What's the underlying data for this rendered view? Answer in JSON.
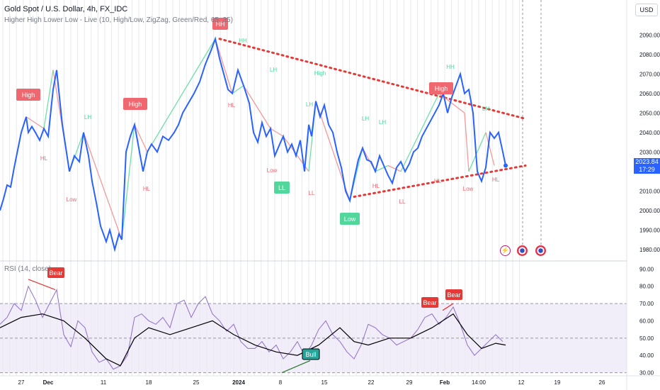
{
  "legend": {
    "title": "Gold Spot / U.S. Dollar, 4h, FX_IDC",
    "indicator": "Higher High Lower Low - Live (10, High/Low, ZigZag, Green/Red, 65, 35)",
    "rsi": "RSI (14, close)"
  },
  "currency": "USD",
  "last_price": {
    "value": "2023.84",
    "countdown": "17:29"
  },
  "colors": {
    "price_line": "#2962ff",
    "zig_up": "#6fe0a6",
    "zig_down": "#f29a9a",
    "trend": "#e53935",
    "rsi_line": "#7e57c2",
    "rsi_ma": "#000000",
    "label_red": "#f0686f",
    "label_green": "#52d69b"
  },
  "event_icons": [
    "lightning-icon",
    "us-flag-icon",
    "us-flag-icon"
  ],
  "chart_data": [
    {
      "type": "line",
      "title": "Gold Spot / U.S. Dollar, 4h",
      "x_ticks": [
        "27",
        "Dec",
        "11",
        "18",
        "25",
        "2024",
        "8",
        "15",
        "22",
        "29",
        "Feb",
        "14:00",
        "12",
        "19",
        "26"
      ],
      "y_ticks": [
        1980,
        1990,
        2000,
        2010,
        2020,
        2030,
        2040,
        2050,
        2060,
        2070,
        2080,
        2090
      ],
      "ylim": [
        1977,
        2097
      ],
      "x": [
        0,
        5,
        10,
        15,
        20,
        30,
        37,
        40,
        45,
        50,
        56,
        62,
        68,
        75,
        80,
        88,
        93,
        98,
        105,
        112,
        118,
        125,
        130,
        136,
        142,
        150,
        155,
        162,
        168,
        172,
        178,
        184,
        190,
        196,
        202,
        208,
        214,
        222,
        230,
        238,
        246,
        252,
        258,
        266,
        274,
        282,
        290,
        298,
        304,
        310,
        316,
        322,
        328,
        336,
        344,
        352,
        358,
        364,
        370,
        376,
        382,
        388,
        395,
        400,
        406,
        412,
        418,
        424,
        430,
        436,
        440,
        446,
        452,
        458,
        464,
        470,
        476,
        482,
        488,
        494,
        500,
        506,
        512,
        518,
        524,
        530,
        536,
        542,
        548,
        554,
        560,
        566,
        572,
        578,
        584,
        590,
        596,
        602,
        608,
        614,
        620,
        626,
        632,
        638,
        644,
        650,
        656,
        662,
        668,
        674,
        680,
        686,
        692,
        698,
        704,
        710,
        714
      ],
      "values": [
        2000,
        2006,
        2013,
        2012,
        2022,
        2040,
        2048,
        2040,
        2043,
        2040,
        2036,
        2042,
        2038,
        2062,
        2072,
        2044,
        2032,
        2020,
        2028,
        2025,
        2040,
        2028,
        2015,
        2004,
        1992,
        1984,
        1990,
        1980,
        1988,
        1985,
        2030,
        2038,
        2044,
        2032,
        2020,
        2030,
        2034,
        2030,
        2038,
        2036,
        2040,
        2044,
        2050,
        2055,
        2060,
        2066,
        2075,
        2082,
        2088,
        2078,
        2070,
        2062,
        2060,
        2072,
        2064,
        2055,
        2040,
        2035,
        2045,
        2038,
        2042,
        2028,
        2034,
        2038,
        2030,
        2034,
        2028,
        2036,
        2020,
        2044,
        2038,
        2056,
        2048,
        2054,
        2044,
        2040,
        2030,
        2022,
        2010,
        2005,
        2016,
        2026,
        2032,
        2026,
        2025,
        2020,
        2028,
        2023,
        2018,
        2014,
        2022,
        2025,
        2020,
        2024,
        2030,
        2032,
        2038,
        2042,
        2046,
        2050,
        2054,
        2060,
        2050,
        2058,
        2064,
        2070,
        2060,
        2062,
        2050,
        2020,
        2015,
        2022,
        2040,
        2037,
        2040,
        2030,
        2023
      ]
    },
    {
      "type": "line",
      "title": "RSI (14, close)",
      "y_ticks": [
        30,
        40,
        50,
        60,
        70,
        80,
        90
      ],
      "ylim": [
        29,
        93
      ],
      "bands": [
        30,
        70
      ],
      "midline": 50,
      "series": [
        {
          "name": "RSI",
          "x": [
            0,
            10,
            20,
            30,
            40,
            50,
            60,
            70,
            80,
            90,
            100,
            110,
            120,
            130,
            140,
            150,
            160,
            170,
            180,
            190,
            200,
            210,
            220,
            230,
            240,
            250,
            260,
            270,
            280,
            290,
            300,
            310,
            320,
            330,
            340,
            350,
            360,
            370,
            380,
            390,
            400,
            410,
            420,
            430,
            440,
            450,
            460,
            470,
            480,
            490,
            500,
            510,
            520,
            530,
            540,
            550,
            560,
            570,
            580,
            590,
            600,
            610,
            620,
            630,
            640,
            650,
            660,
            670,
            680,
            690,
            700,
            710
          ],
          "values": [
            58,
            62,
            70,
            66,
            80,
            72,
            62,
            70,
            78,
            52,
            45,
            60,
            56,
            42,
            36,
            38,
            32,
            34,
            40,
            62,
            64,
            60,
            58,
            62,
            56,
            70,
            72,
            62,
            70,
            74,
            64,
            60,
            54,
            58,
            48,
            44,
            44,
            48,
            42,
            46,
            38,
            42,
            48,
            40,
            46,
            55,
            60,
            52,
            48,
            42,
            38,
            46,
            58,
            56,
            52,
            50,
            46,
            48,
            50,
            55,
            62,
            64,
            58,
            62,
            68,
            58,
            46,
            40,
            44,
            48,
            52,
            48
          ]
        },
        {
          "name": "RSI-based MA",
          "x": [
            0,
            30,
            60,
            90,
            120,
            150,
            170,
            190,
            210,
            240,
            270,
            300,
            330,
            360,
            390,
            420,
            450,
            480,
            500,
            520,
            550,
            580,
            610,
            640,
            660,
            680,
            700,
            714
          ],
          "values": [
            56,
            62,
            64,
            60,
            50,
            38,
            34,
            50,
            56,
            52,
            56,
            60,
            52,
            46,
            42,
            40,
            46,
            56,
            48,
            46,
            50,
            50,
            56,
            64,
            52,
            44,
            47,
            46
          ]
        }
      ]
    }
  ],
  "swing_labels": [
    {
      "text": "High",
      "kind": "box-red"
    },
    {
      "text": "High",
      "kind": "box-red"
    },
    {
      "text": "HH",
      "kind": "box-red"
    },
    {
      "text": "High",
      "kind": "box-red"
    },
    {
      "text": "LL",
      "kind": "box-green"
    },
    {
      "text": "Low",
      "kind": "box-green"
    },
    {
      "text": "HH",
      "kind": "text-green"
    },
    {
      "text": "LH",
      "kind": "text-green"
    },
    {
      "text": "LH",
      "kind": "text-green"
    },
    {
      "text": "High",
      "kind": "text-green"
    },
    {
      "text": "LH",
      "kind": "text-green"
    },
    {
      "text": "LH",
      "kind": "text-green"
    },
    {
      "text": "LH",
      "kind": "text-green"
    },
    {
      "text": "HH",
      "kind": "text-green"
    },
    {
      "text": "LH",
      "kind": "text-green"
    },
    {
      "text": "HL",
      "kind": "text-red"
    },
    {
      "text": "Low",
      "kind": "text-red"
    },
    {
      "text": "HL",
      "kind": "text-red"
    },
    {
      "text": "HL",
      "kind": "text-red"
    },
    {
      "text": "Low",
      "kind": "text-red"
    },
    {
      "text": "LL",
      "kind": "text-red"
    },
    {
      "text": "HL",
      "kind": "text-red"
    },
    {
      "text": "LL",
      "kind": "text-red"
    },
    {
      "text": "HL",
      "kind": "text-red"
    },
    {
      "text": "Low",
      "kind": "text-red"
    },
    {
      "text": "HL",
      "kind": "text-red"
    }
  ],
  "rsi_labels": [
    {
      "text": "Bear",
      "kind": "box-red"
    },
    {
      "text": "Bear",
      "kind": "box-red"
    },
    {
      "text": "Bear",
      "kind": "box-red"
    },
    {
      "text": "Bull",
      "kind": "box-green"
    }
  ]
}
